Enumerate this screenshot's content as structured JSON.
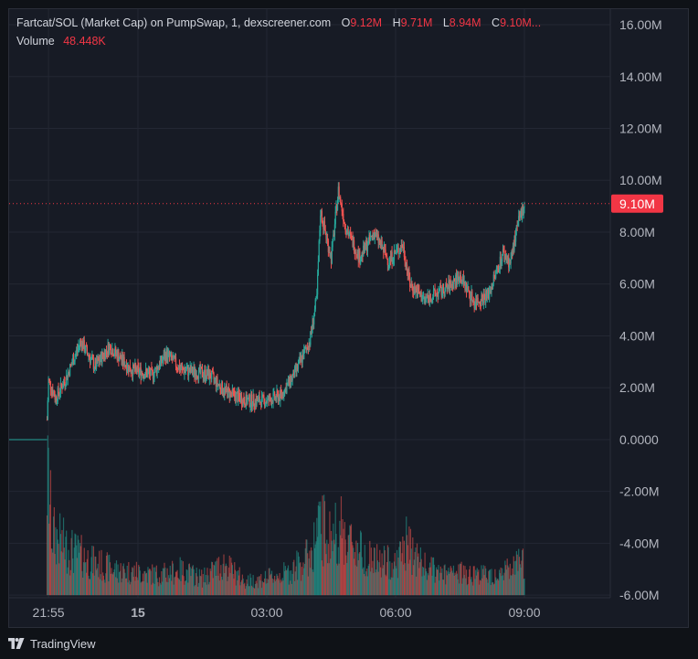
{
  "legend": {
    "symbol": "Fartcat/SOL (Market Cap) on PumpSwap, 1, dexscreener.com",
    "o_label": "O",
    "o_value": "9.12M",
    "h_label": "H",
    "h_value": "9.71M",
    "l_label": "L",
    "l_value": "8.94M",
    "c_label": "C",
    "c_value": "9.10M...",
    "volume_label": "Volume",
    "volume_value": "48.448K"
  },
  "price_tag": "9.10M",
  "footer": {
    "brand": "TradingView"
  },
  "colors": {
    "background": "#171b25",
    "up": "#26a69a",
    "down": "#ef5350",
    "price_line": "#f23645",
    "grid": "#232733"
  },
  "chart_data": {
    "type": "candlestick",
    "title": "",
    "y_ticks": [
      "16.00M",
      "14.00M",
      "12.00M",
      "10.00M",
      "8.00M",
      "6.00M",
      "4.00M",
      "2.00M",
      "0.0000",
      "-2.00M",
      "-4.00M",
      "-6.00M"
    ],
    "y_tick_values": [
      16,
      14,
      12,
      10,
      8,
      6,
      4,
      2,
      0,
      -2,
      -4,
      -6
    ],
    "y_unit": "M",
    "ylim": [
      -6.1,
      16.6
    ],
    "x_ticks": [
      "21:55",
      "15",
      "03:00",
      "06:00",
      "09:00"
    ],
    "x_tick_times": [
      "2025-01-14 21:55",
      "2025-01-15 00:00",
      "2025-01-15 03:00",
      "2025-01-15 06:00",
      "2025-01-15 09:00"
    ],
    "x_range": [
      "2025-01-14 21:00",
      "2025-01-15 11:00"
    ],
    "bold_x_tick": "15",
    "current_price": 9.1,
    "series": [
      {
        "name": "Market Cap",
        "kind": "price",
        "points_time_value": [
          [
            "2025-01-14 21:00",
            0.0
          ],
          [
            "2025-01-14 21:52",
            0.0
          ],
          [
            "2025-01-14 21:55",
            2.3
          ],
          [
            "2025-01-14 22:05",
            1.6
          ],
          [
            "2025-01-14 22:20",
            2.4
          ],
          [
            "2025-01-14 22:40",
            3.8
          ],
          [
            "2025-01-14 23:00",
            2.8
          ],
          [
            "2025-01-14 23:20",
            3.6
          ],
          [
            "2025-01-14 23:50",
            2.7
          ],
          [
            "2025-01-15 00:20",
            2.5
          ],
          [
            "2025-01-15 00:40",
            3.3
          ],
          [
            "2025-01-15 01:00",
            2.7
          ],
          [
            "2025-01-15 01:40",
            2.5
          ],
          [
            "2025-01-15 02:00",
            1.9
          ],
          [
            "2025-01-15 02:30",
            1.5
          ],
          [
            "2025-01-15 03:00",
            1.5
          ],
          [
            "2025-01-15 03:20",
            1.7
          ],
          [
            "2025-01-15 03:40",
            2.6
          ],
          [
            "2025-01-15 04:00",
            3.8
          ],
          [
            "2025-01-15 04:10",
            5.5
          ],
          [
            "2025-01-15 04:15",
            8.8
          ],
          [
            "2025-01-15 04:30",
            7.0
          ],
          [
            "2025-01-15 04:40",
            9.6
          ],
          [
            "2025-01-15 04:50",
            8.2
          ],
          [
            "2025-01-15 05:10",
            7.0
          ],
          [
            "2025-01-15 05:30",
            8.0
          ],
          [
            "2025-01-15 05:50",
            6.9
          ],
          [
            "2025-01-15 06:10",
            7.5
          ],
          [
            "2025-01-15 06:20",
            6.0
          ],
          [
            "2025-01-15 06:40",
            5.4
          ],
          [
            "2025-01-15 07:10",
            5.8
          ],
          [
            "2025-01-15 07:30",
            6.3
          ],
          [
            "2025-01-15 07:50",
            5.3
          ],
          [
            "2025-01-15 08:10",
            5.6
          ],
          [
            "2025-01-15 08:30",
            7.2
          ],
          [
            "2025-01-15 08:40",
            6.8
          ],
          [
            "2025-01-15 08:50",
            8.2
          ],
          [
            "2025-01-15 09:00",
            9.1
          ]
        ]
      },
      {
        "name": "Volume",
        "kind": "volume",
        "points_time_value": [
          [
            "2025-01-14 21:55",
            1.0
          ],
          [
            "2025-01-14 22:00",
            0.55
          ],
          [
            "2025-01-14 22:20",
            0.42
          ],
          [
            "2025-01-14 22:40",
            0.35
          ],
          [
            "2025-01-14 23:00",
            0.28
          ],
          [
            "2025-01-14 23:30",
            0.22
          ],
          [
            "2025-01-15 00:00",
            0.2
          ],
          [
            "2025-01-15 00:30",
            0.18
          ],
          [
            "2025-01-15 01:00",
            0.22
          ],
          [
            "2025-01-15 01:30",
            0.15
          ],
          [
            "2025-01-15 02:00",
            0.28
          ],
          [
            "2025-01-15 02:30",
            0.12
          ],
          [
            "2025-01-15 03:00",
            0.15
          ],
          [
            "2025-01-15 03:30",
            0.2
          ],
          [
            "2025-01-15 04:00",
            0.35
          ],
          [
            "2025-01-15 04:15",
            0.62
          ],
          [
            "2025-01-15 04:30",
            0.5
          ],
          [
            "2025-01-15 04:40",
            0.6
          ],
          [
            "2025-01-15 05:00",
            0.45
          ],
          [
            "2025-01-15 05:30",
            0.3
          ],
          [
            "2025-01-15 06:00",
            0.28
          ],
          [
            "2025-01-15 06:15",
            0.45
          ],
          [
            "2025-01-15 06:40",
            0.25
          ],
          [
            "2025-01-15 07:10",
            0.18
          ],
          [
            "2025-01-15 07:40",
            0.2
          ],
          [
            "2025-01-15 08:10",
            0.18
          ],
          [
            "2025-01-15 08:40",
            0.22
          ],
          [
            "2025-01-15 09:00",
            0.3
          ]
        ]
      }
    ]
  }
}
